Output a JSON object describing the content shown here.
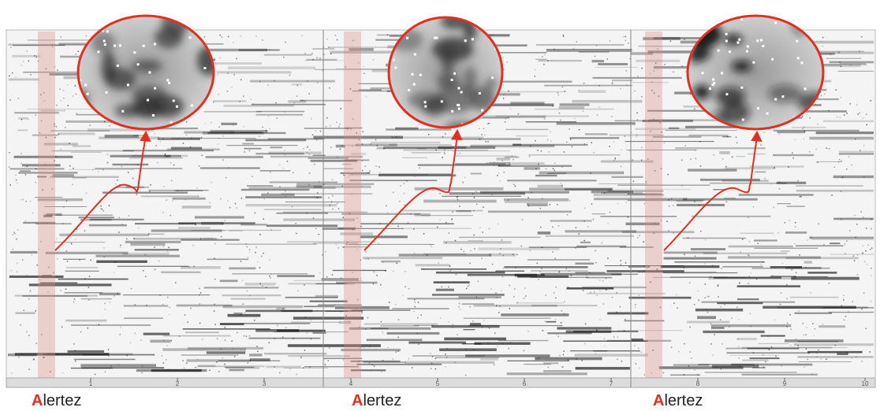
{
  "panels": [
    {
      "label": "Alertez"
    },
    {
      "label": "Alertez"
    },
    {
      "label": "Alertez"
    }
  ],
  "axis": {
    "ticks": [
      "1",
      "2",
      "3",
      "4",
      "5",
      "6",
      "7",
      "8",
      "9",
      "10"
    ]
  }
}
